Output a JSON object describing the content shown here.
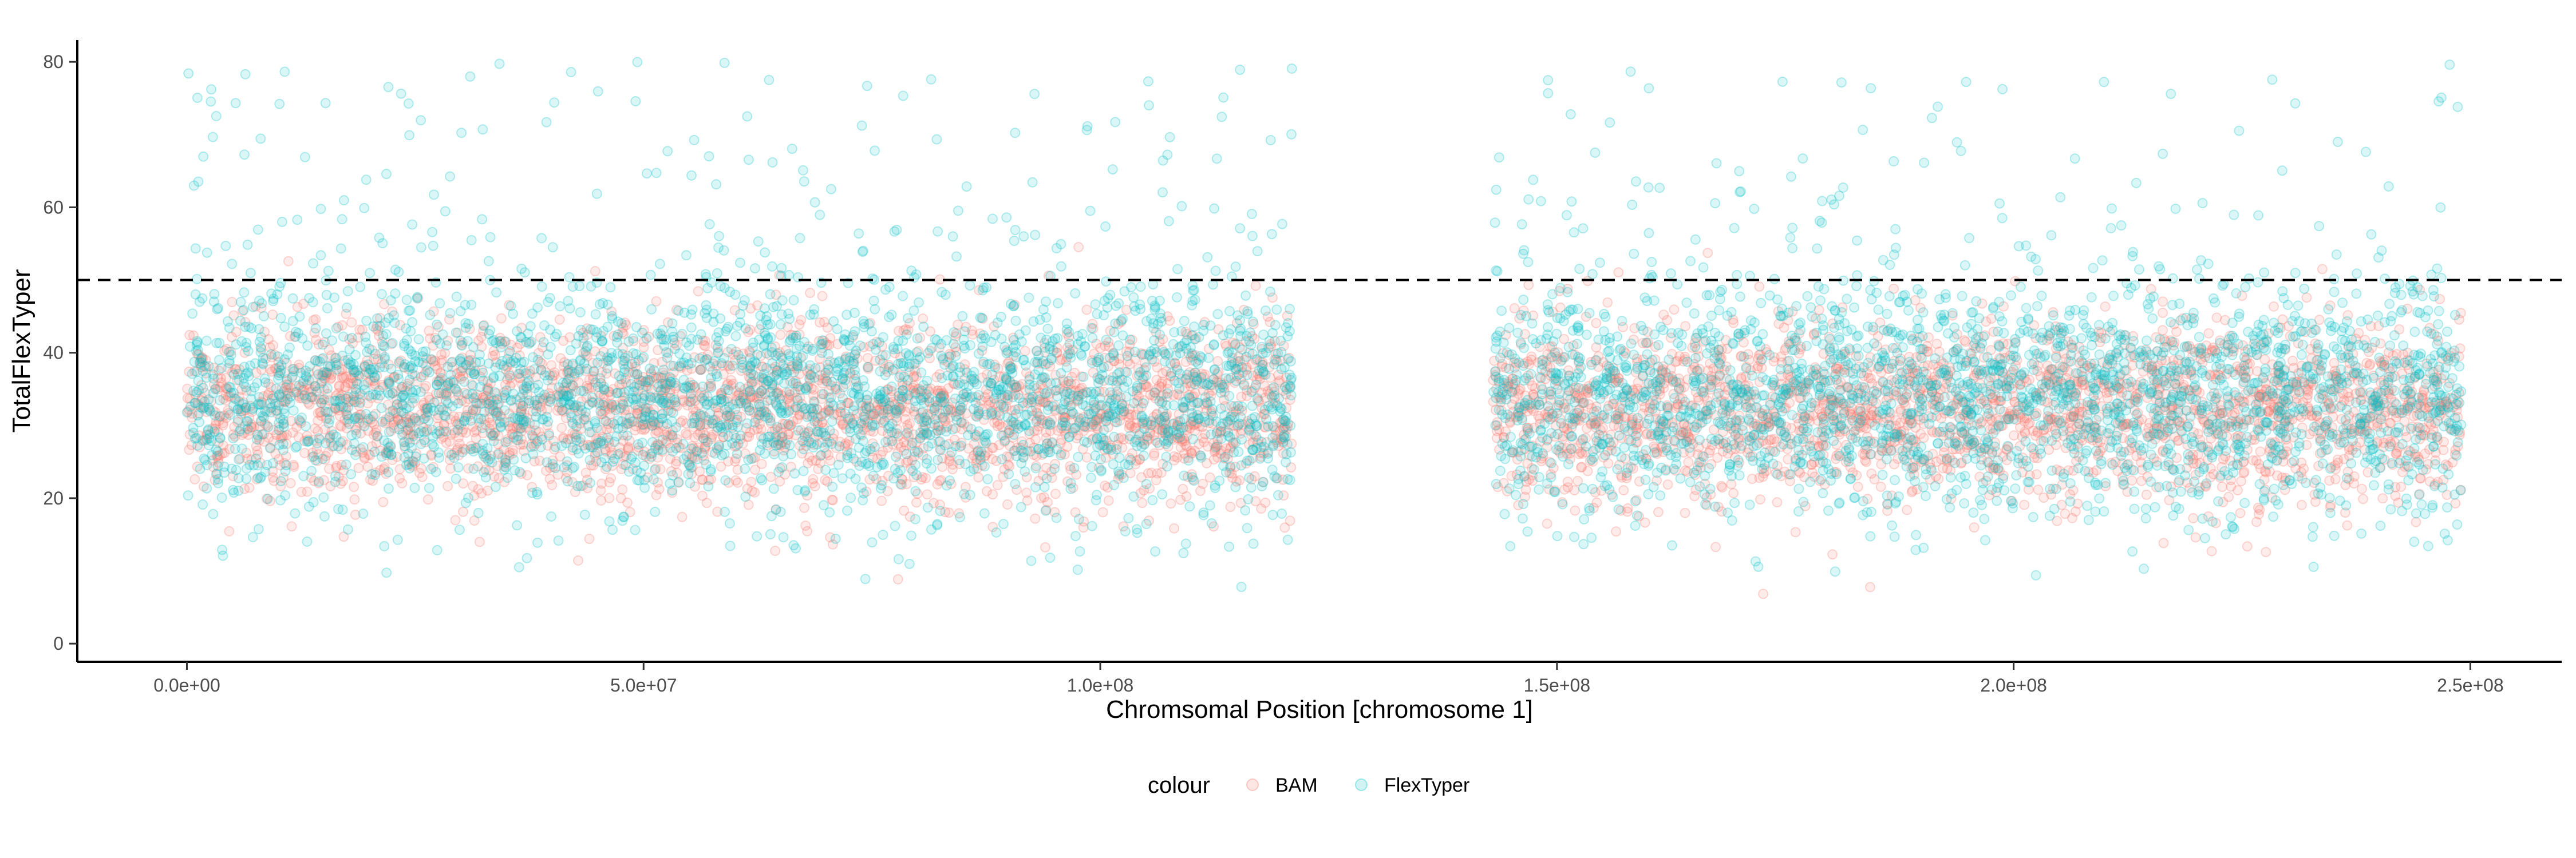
{
  "chart_data": {
    "type": "scatter",
    "title": "",
    "xlabel": "Chromsomal Position [chromosome 1]",
    "ylabel": "TotalFlexTyper",
    "xlim": [
      -12000000,
      260000000
    ],
    "ylim": [
      -2.5,
      83
    ],
    "x_ticks": [
      0,
      50000000,
      100000000,
      150000000,
      200000000,
      250000000
    ],
    "x_tick_labels": [
      "0.0e+00",
      "5.0e+07",
      "1.0e+08",
      "1.5e+08",
      "2.0e+08",
      "2.5e+08"
    ],
    "y_ticks": [
      0,
      20,
      40,
      60,
      80
    ],
    "y_tick_labels": [
      "0",
      "20",
      "40",
      "60",
      "80"
    ],
    "reference_line": {
      "y": 50,
      "style": "dashed",
      "color": "#000000"
    },
    "legend": {
      "title": "colour",
      "position": "bottom"
    },
    "grid": false,
    "x_segments": [
      {
        "from": 0,
        "to": 121000000
      },
      {
        "from": 143000000,
        "to": 249000000
      }
    ],
    "series": [
      {
        "name": "BAM",
        "color": "#F8766D",
        "opacity": 0.15,
        "typical_range": [
          20,
          45
        ],
        "center": 32
      },
      {
        "name": "FlexTyper",
        "color": "#00BFC4",
        "opacity": 0.15,
        "typical_range": [
          15,
          55
        ],
        "center": 34
      }
    ]
  }
}
